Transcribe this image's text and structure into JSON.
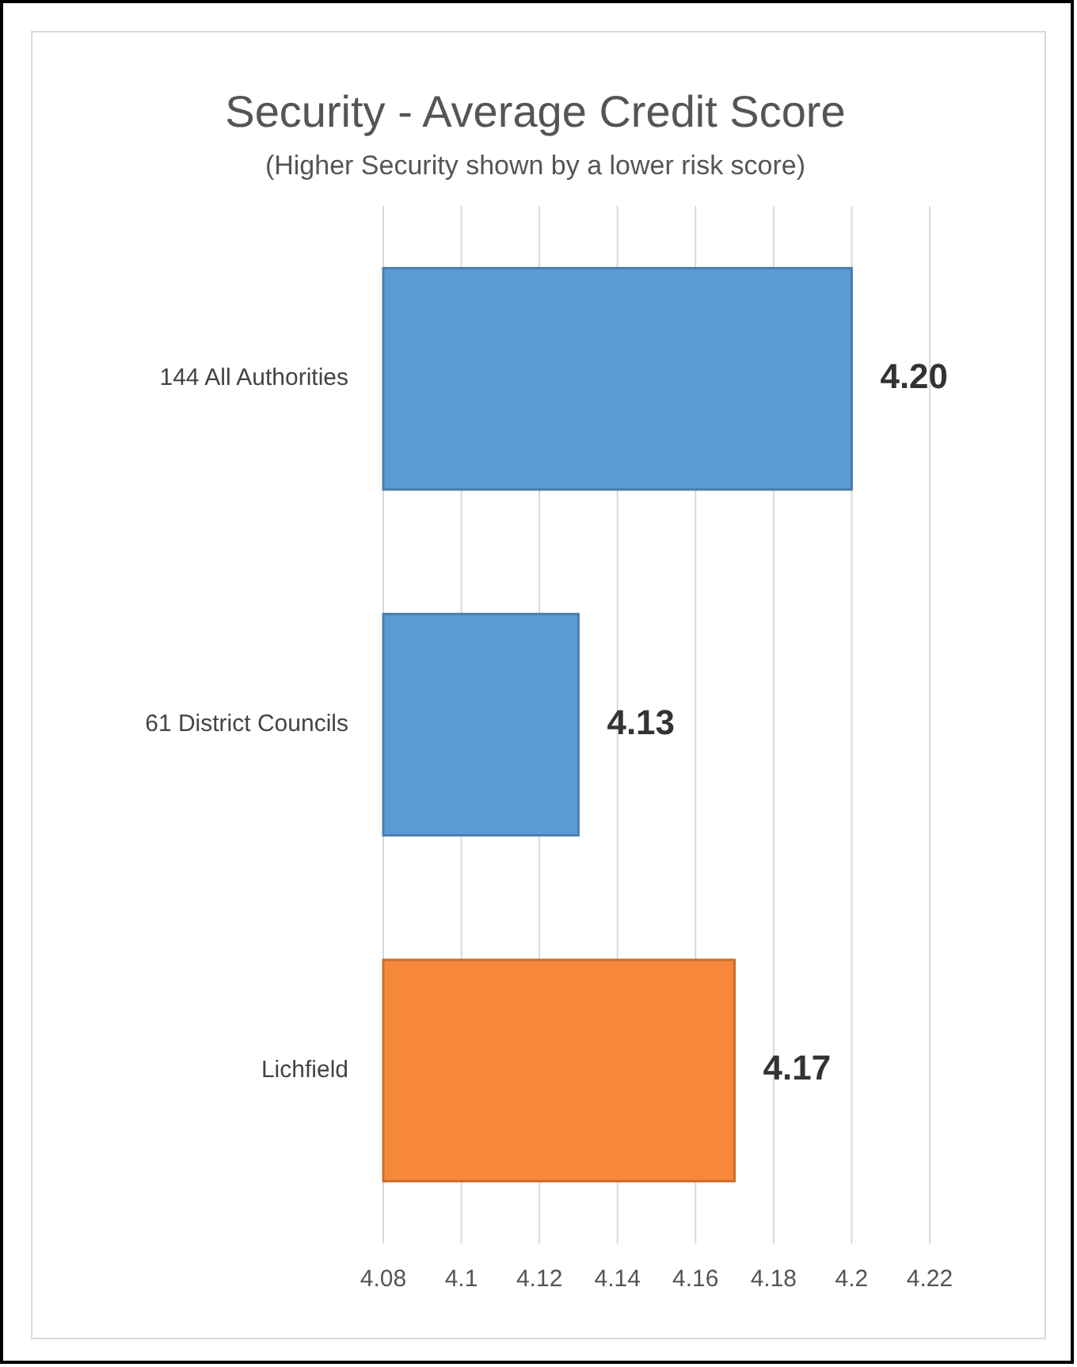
{
  "chart_data": {
    "type": "bar",
    "orientation": "horizontal",
    "title": "Security - Average Credit Score",
    "subtitle": "(Higher Security shown by a lower risk score)",
    "categories": [
      "144 All Authorities",
      "61 District Councils",
      "Lichfield"
    ],
    "values": [
      4.2,
      4.13,
      4.17
    ],
    "value_labels": [
      "4.20",
      "4.13",
      "4.17"
    ],
    "colors": [
      "#5b9bd5",
      "#5b9bd5",
      "#f7883b"
    ],
    "xlim": [
      4.08,
      4.22
    ],
    "xticks": [
      4.08,
      4.1,
      4.12,
      4.14,
      4.16,
      4.18,
      4.2,
      4.22
    ],
    "grid": "x"
  }
}
